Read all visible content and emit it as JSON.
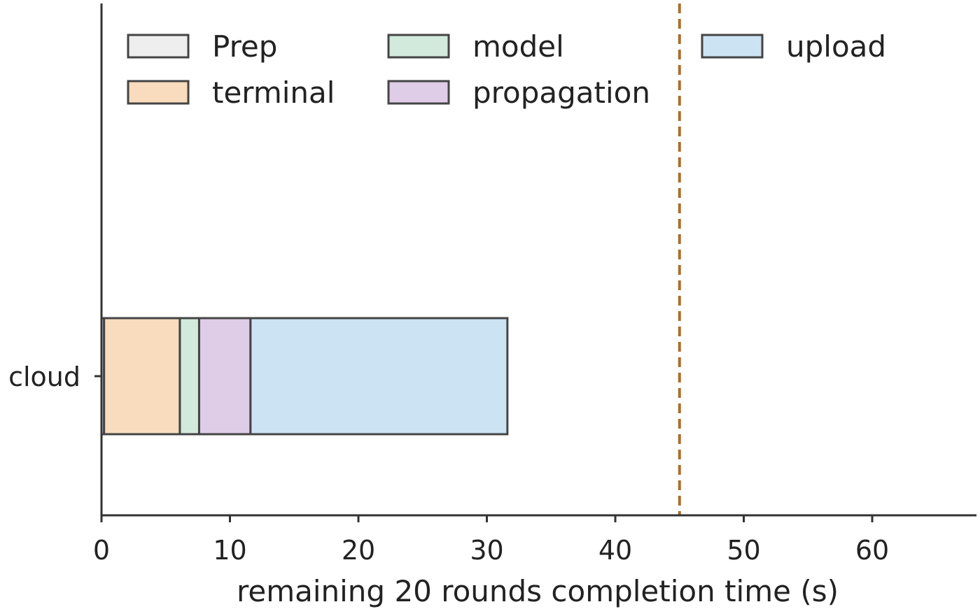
{
  "chart_data": {
    "type": "bar",
    "orientation": "horizontal",
    "stacked": true,
    "categories": [
      "cloud"
    ],
    "series": [
      {
        "name": "Prep",
        "values": [
          0.2
        ],
        "color": "#eeeeee"
      },
      {
        "name": "terminal",
        "values": [
          5.9
        ],
        "color": "#f9dcbe"
      },
      {
        "name": "model",
        "values": [
          1.5
        ],
        "color": "#d2eadc"
      },
      {
        "name": "propagation",
        "values": [
          4.0
        ],
        "color": "#dfcce6"
      },
      {
        "name": "upload",
        "values": [
          20.0
        ],
        "color": "#cce3f3"
      }
    ],
    "reference_line": {
      "x": 45,
      "color": "#a86f2e",
      "style": "dashed"
    },
    "xlabel": "remaining 20 rounds completion time (s)",
    "ylabel": "",
    "xlim": [
      0,
      68
    ],
    "xticks": [
      0,
      10,
      20,
      30,
      40,
      50,
      60
    ],
    "grid": false,
    "legend_position": "top"
  }
}
